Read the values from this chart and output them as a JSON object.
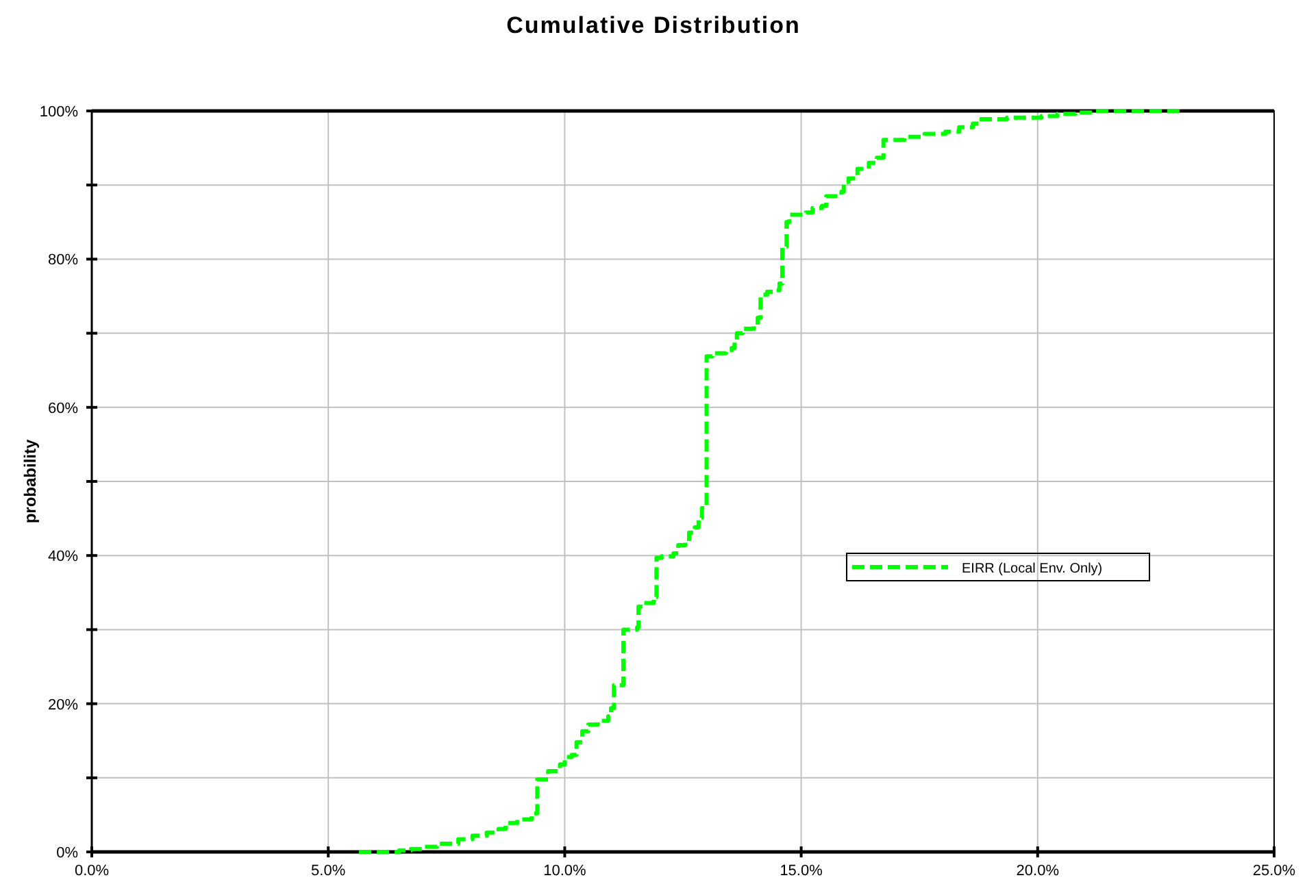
{
  "chart_data": {
    "type": "step",
    "title": "Cumulative Distribution",
    "ylabel": "probability",
    "xlim": [
      0,
      25
    ],
    "ylim": [
      0,
      100
    ],
    "xticks": [
      {
        "value": 0,
        "label": "0.0%"
      },
      {
        "value": 5,
        "label": "5.0%"
      },
      {
        "value": 10,
        "label": "10.0%"
      },
      {
        "value": 15,
        "label": "15.0%"
      },
      {
        "value": 20,
        "label": "20.0%"
      },
      {
        "value": 25,
        "label": "25.0%"
      }
    ],
    "yticks": [
      {
        "value": 0,
        "label": "0%"
      },
      {
        "value": 10,
        "label": null
      },
      {
        "value": 20,
        "label": "20%"
      },
      {
        "value": 30,
        "label": null
      },
      {
        "value": 40,
        "label": "40%"
      },
      {
        "value": 50,
        "label": null
      },
      {
        "value": 60,
        "label": "60%"
      },
      {
        "value": 70,
        "label": null
      },
      {
        "value": 80,
        "label": "80%"
      },
      {
        "value": 90,
        "label": null
      },
      {
        "value": 100,
        "label": "100%"
      }
    ],
    "grid": true,
    "legend": "right",
    "line_style": "dashed",
    "series": [
      {
        "name": "EIRR (Local Env. Only)",
        "color": "#00ff00",
        "x": [
          5.65,
          6.5,
          6.75,
          7.0,
          7.3,
          7.75,
          8.05,
          8.35,
          8.6,
          8.75,
          9.0,
          9.3,
          9.42,
          9.65,
          9.9,
          10.0,
          10.15,
          10.25,
          10.37,
          10.5,
          10.7,
          10.92,
          10.98,
          11.04,
          11.24,
          11.53,
          11.56,
          11.67,
          11.88,
          11.94,
          12.05,
          12.3,
          12.4,
          12.55,
          12.63,
          12.75,
          12.83,
          12.9,
          13.0,
          13.12,
          13.41,
          13.53,
          13.59,
          13.64,
          13.76,
          14.0,
          14.08,
          14.14,
          14.28,
          14.48,
          14.54,
          14.6,
          14.69,
          14.75,
          15.1,
          15.24,
          15.44,
          15.53,
          15.85,
          15.9,
          16.0,
          16.19,
          16.43,
          16.6,
          16.74,
          17.18,
          17.61,
          18.05,
          18.34,
          18.63,
          18.77,
          19.35,
          20.08,
          20.42,
          20.8,
          21.2,
          23.0
        ],
        "values": [
          0,
          0.2,
          0.4,
          0.7,
          1.1,
          1.7,
          2.2,
          2.6,
          3.1,
          3.9,
          4.4,
          5.2,
          9.8,
          10.9,
          11.8,
          12.8,
          13.1,
          14.8,
          16.3,
          17.2,
          17.7,
          18.3,
          19.4,
          22.5,
          30.0,
          30.3,
          33.1,
          33.6,
          34.4,
          39.7,
          39.9,
          40.3,
          41.4,
          41.8,
          43.1,
          43.8,
          45.1,
          46.4,
          66.9,
          67.3,
          67.7,
          68.0,
          69.1,
          70.0,
          70.6,
          71.0,
          72.1,
          75.2,
          75.6,
          75.8,
          76.7,
          81.7,
          85.0,
          86.0,
          86.3,
          86.9,
          87.2,
          88.5,
          89.1,
          90.4,
          90.9,
          92.2,
          93.0,
          93.7,
          96.1,
          96.5,
          96.9,
          97.2,
          97.8,
          98.3,
          98.9,
          99.1,
          99.3,
          99.6,
          99.8,
          100,
          100
        ]
      }
    ]
  }
}
